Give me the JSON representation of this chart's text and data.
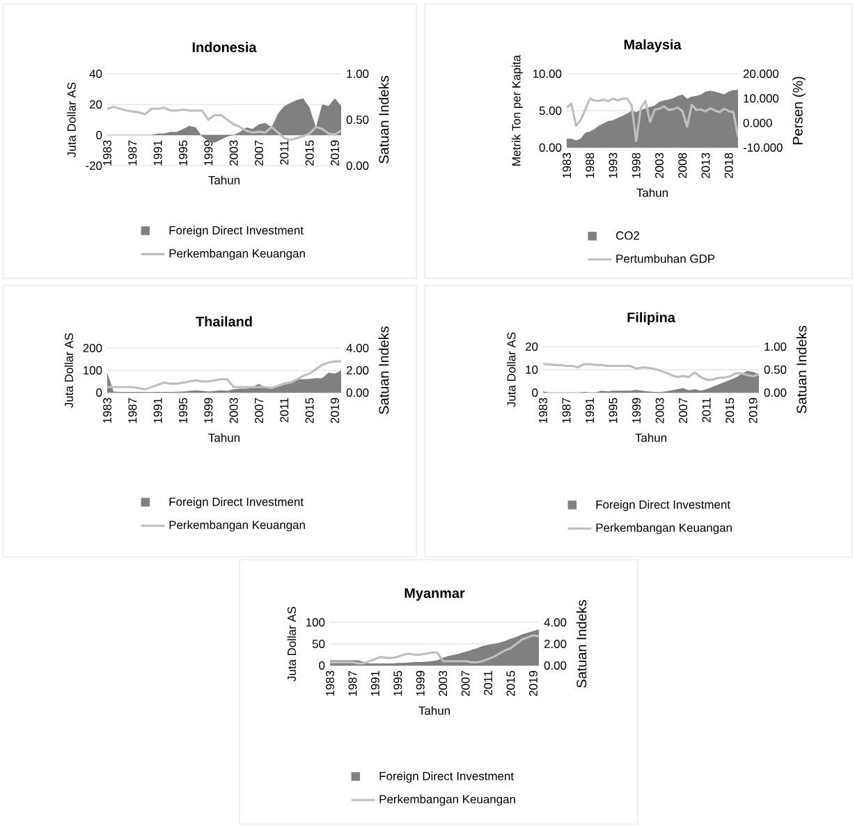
{
  "chart_data": [
    {
      "type": "area",
      "title": "Indonesia",
      "xlabel": "Tahun",
      "ylabel": "Juta Dollar AS",
      "y2label": "Satuan Indeks",
      "x": [
        1983,
        1984,
        1985,
        1986,
        1987,
        1988,
        1989,
        1990,
        1991,
        1992,
        1993,
        1994,
        1995,
        1996,
        1997,
        1998,
        1999,
        2000,
        2001,
        2002,
        2003,
        2004,
        2005,
        2006,
        2007,
        2008,
        2009,
        2010,
        2011,
        2012,
        2013,
        2014,
        2015,
        2016,
        2017,
        2018,
        2019,
        2020
      ],
      "xlim": [
        1983,
        2020
      ],
      "xticks": [
        1983,
        1987,
        1991,
        1995,
        1999,
        2003,
        2007,
        2011,
        2015,
        2019
      ],
      "ylim": [
        -20,
        40
      ],
      "yticks": [
        -20,
        0,
        20,
        40
      ],
      "y2lim": [
        0,
        1
      ],
      "y2ticks": [
        {
          "value": 0,
          "label": "0.00"
        },
        {
          "value": 0.5,
          "label": "0.50"
        },
        {
          "value": 1,
          "label": "1.00"
        }
      ],
      "grid": "y",
      "legend": "bottom",
      "series": [
        {
          "name": "Foreign Direct Investment",
          "color": "#808080",
          "values": [
            0,
            0,
            0,
            0,
            0,
            0,
            0,
            0,
            1,
            1,
            2,
            2,
            4,
            6,
            5,
            -1,
            -4,
            -5,
            -3,
            -1,
            0,
            2,
            5,
            4,
            7,
            8,
            5,
            14,
            19,
            21,
            23,
            24,
            18,
            5,
            20,
            19,
            24,
            19
          ]
        },
        {
          "name": "Perkembangan Keuangan",
          "type": "line",
          "axis": "y2",
          "color": "#bfbfbf",
          "values": [
            0.62,
            0.64,
            0.62,
            0.6,
            0.59,
            0.58,
            0.56,
            0.62,
            0.62,
            0.63,
            0.6,
            0.6,
            0.61,
            0.6,
            0.6,
            0.6,
            0.5,
            0.55,
            0.55,
            0.5,
            0.45,
            0.42,
            0.38,
            0.36,
            0.37,
            0.36,
            0.42,
            0.36,
            0.3,
            0.28,
            0.3,
            0.32,
            0.35,
            0.42,
            0.4,
            0.35,
            0.34,
            0.38
          ]
        }
      ]
    },
    {
      "type": "area",
      "title": "Malaysia",
      "xlabel": "Tahun",
      "ylabel": "Metrik Ton per Kapita",
      "y2label": "Persen (%)",
      "x": [
        1983,
        1984,
        1985,
        1986,
        1987,
        1988,
        1989,
        1990,
        1991,
        1992,
        1993,
        1994,
        1995,
        1996,
        1997,
        1998,
        1999,
        2000,
        2001,
        2002,
        2003,
        2004,
        2005,
        2006,
        2007,
        2008,
        2009,
        2010,
        2011,
        2012,
        2013,
        2014,
        2015,
        2016,
        2017,
        2018,
        2019,
        2020
      ],
      "xlim": [
        1983,
        2020
      ],
      "xticks": [
        1983,
        1988,
        1993,
        1998,
        2003,
        2008,
        2013,
        2018
      ],
      "ylim": [
        0,
        10
      ],
      "yticks": [
        {
          "value": 0,
          "label": "0.00"
        },
        {
          "value": 5,
          "label": "5.00"
        },
        {
          "value": 10,
          "label": "10.00"
        }
      ],
      "y2lim": [
        -10,
        20
      ],
      "y2ticks": [
        {
          "value": -10,
          "label": "-10.000"
        },
        {
          "value": 0,
          "label": "0.000"
        },
        {
          "value": 10,
          "label": "10.000"
        },
        {
          "value": 20,
          "label": "20.000"
        }
      ],
      "grid": "y",
      "legend": "bottom",
      "series": [
        {
          "name": "CO2",
          "color": "#808080",
          "values": [
            1.2,
            1.2,
            1.0,
            1.2,
            2.0,
            2.2,
            2.5,
            3.0,
            3.3,
            3.6,
            3.7,
            4.0,
            4.3,
            4.6,
            5.0,
            4.8,
            5.1,
            5.3,
            5.5,
            5.7,
            6.2,
            6.4,
            6.5,
            6.7,
            7.0,
            7.2,
            6.6,
            6.9,
            7.0,
            7.2,
            7.6,
            7.7,
            7.6,
            7.4,
            7.2,
            7.6,
            7.8,
            7.8
          ]
        },
        {
          "name": "Pertumbuhan GDP",
          "type": "line",
          "axis": "y2",
          "color": "#bfbfbf",
          "values": [
            6.3,
            7.8,
            -1.1,
            1.2,
            5.4,
            9.9,
            9.1,
            9.0,
            9.5,
            8.9,
            9.9,
            9.2,
            9.8,
            10.0,
            7.3,
            -7.4,
            6.1,
            8.9,
            0.5,
            5.4,
            5.8,
            6.8,
            5.3,
            5.6,
            6.3,
            4.8,
            -1.5,
            7.4,
            5.3,
            5.5,
            4.7,
            6.0,
            5.1,
            4.4,
            5.8,
            4.8,
            4.4,
            -5.6
          ]
        }
      ]
    },
    {
      "type": "area",
      "title": "Thailand",
      "xlabel": "Tahun",
      "ylabel": "Juta Dollar AS",
      "y2label": "Satuan Indeks",
      "x": [
        1983,
        1984,
        1985,
        1986,
        1987,
        1988,
        1989,
        1990,
        1991,
        1992,
        1993,
        1994,
        1995,
        1996,
        1997,
        1998,
        1999,
        2000,
        2001,
        2002,
        2003,
        2004,
        2005,
        2006,
        2007,
        2008,
        2009,
        2010,
        2011,
        2012,
        2013,
        2014,
        2015,
        2016,
        2017,
        2018,
        2019,
        2020
      ],
      "xlim": [
        1983,
        2020
      ],
      "xticks": [
        1983,
        1987,
        1991,
        1995,
        1999,
        2003,
        2007,
        2011,
        2015,
        2019
      ],
      "ylim": [
        0,
        200
      ],
      "yticks": [
        0,
        100,
        200
      ],
      "y2lim": [
        0,
        4
      ],
      "y2ticks": [
        {
          "value": 0,
          "label": "0.00"
        },
        {
          "value": 2,
          "label": "2.00"
        },
        {
          "value": 4,
          "label": "4.00"
        }
      ],
      "grid": "y",
      "legend": "bottom",
      "series": [
        {
          "name": "Foreign Direct Investment",
          "color": "#808080",
          "values": [
            90,
            5,
            3,
            3,
            3,
            3,
            2,
            2,
            3,
            3,
            3,
            4,
            5,
            8,
            10,
            8,
            5,
            8,
            10,
            8,
            15,
            18,
            18,
            25,
            40,
            20,
            20,
            35,
            45,
            50,
            60,
            60,
            62,
            65,
            65,
            90,
            85,
            100
          ]
        },
        {
          "name": "Perkembangan Keuangan",
          "type": "line",
          "axis": "y2",
          "color": "#bfbfbf",
          "values": [
            0.5,
            0.5,
            0.5,
            0.5,
            0.5,
            0.4,
            0.3,
            0.5,
            0.7,
            0.9,
            0.8,
            0.8,
            0.9,
            1.0,
            1.1,
            1.0,
            1.0,
            1.1,
            1.2,
            1.2,
            0.5,
            0.5,
            0.5,
            0.5,
            0.5,
            0.5,
            0.4,
            0.6,
            0.8,
            0.9,
            1.2,
            1.5,
            1.7,
            2.1,
            2.5,
            2.7,
            2.8,
            2.8
          ]
        }
      ]
    },
    {
      "type": "area",
      "title": "Filipina",
      "xlabel": "Tahun",
      "ylabel": "Juta Dollar AS",
      "y2label": "Satuan Indeks",
      "x": [
        1983,
        1984,
        1985,
        1986,
        1987,
        1988,
        1989,
        1990,
        1991,
        1992,
        1993,
        1994,
        1995,
        1996,
        1997,
        1998,
        1999,
        2000,
        2001,
        2002,
        2003,
        2004,
        2005,
        2006,
        2007,
        2008,
        2009,
        2010,
        2011,
        2012,
        2013,
        2014,
        2015,
        2016,
        2017,
        2018,
        2019,
        2020
      ],
      "xlim": [
        1983,
        2020
      ],
      "xticks": [
        1983,
        1987,
        1991,
        1995,
        1999,
        2003,
        2007,
        2011,
        2015,
        2019
      ],
      "ylim": [
        0,
        20
      ],
      "yticks": [
        0,
        10,
        20
      ],
      "y2lim": [
        0,
        1
      ],
      "y2ticks": [
        {
          "value": 0,
          "label": "0.00"
        },
        {
          "value": 0.5,
          "label": "0.50"
        },
        {
          "value": 1,
          "label": "1.00"
        }
      ],
      "grid": "y",
      "legend": "bottom",
      "series": [
        {
          "name": "Foreign Direct Investment",
          "color": "#808080",
          "values": [
            0.5,
            0,
            0,
            0,
            0,
            0,
            0,
            0.3,
            0,
            0,
            0.8,
            0.5,
            0.8,
            0.8,
            0.8,
            0.8,
            1.2,
            0.8,
            0.5,
            0.3,
            0.2,
            0.5,
            1.0,
            1.5,
            2.0,
            1.0,
            1.5,
            0.8,
            1.5,
            2.5,
            3.5,
            4.5,
            5.5,
            6.5,
            8.0,
            9.5,
            9.0,
            8.0
          ]
        },
        {
          "name": "Perkembangan Keuangan",
          "type": "line",
          "axis": "y2",
          "color": "#bfbfbf",
          "values": [
            0.62,
            0.62,
            0.6,
            0.6,
            0.58,
            0.58,
            0.55,
            0.62,
            0.62,
            0.6,
            0.6,
            0.58,
            0.58,
            0.58,
            0.58,
            0.58,
            0.52,
            0.55,
            0.54,
            0.52,
            0.48,
            0.44,
            0.38,
            0.34,
            0.36,
            0.34,
            0.44,
            0.34,
            0.28,
            0.28,
            0.32,
            0.33,
            0.35,
            0.42,
            0.42,
            0.38,
            0.36,
            0.4
          ]
        }
      ]
    },
    {
      "type": "area",
      "title": "Myanmar",
      "xlabel": "Tahun",
      "ylabel": "Juta Dollar AS",
      "y2label": "Satuan Indeks",
      "x": [
        1983,
        1984,
        1985,
        1986,
        1987,
        1988,
        1989,
        1990,
        1991,
        1992,
        1993,
        1994,
        1995,
        1996,
        1997,
        1998,
        1999,
        2000,
        2001,
        2002,
        2003,
        2004,
        2005,
        2006,
        2007,
        2008,
        2009,
        2010,
        2011,
        2012,
        2013,
        2014,
        2015,
        2016,
        2017,
        2018,
        2019,
        2020
      ],
      "xlim": [
        1983,
        2020
      ],
      "xticks": [
        1983,
        1987,
        1991,
        1995,
        1999,
        2003,
        2007,
        2011,
        2015,
        2019
      ],
      "ylim": [
        0,
        100
      ],
      "yticks": [
        0,
        50,
        100
      ],
      "y2lim": [
        0,
        4
      ],
      "y2ticks": [
        {
          "value": 0,
          "label": "0.00"
        },
        {
          "value": 2,
          "label": "2.00"
        },
        {
          "value": 4,
          "label": "4.00"
        }
      ],
      "grid": "y",
      "legend": "bottom",
      "series": [
        {
          "name": "Foreign Direct Investment",
          "color": "#808080",
          "values": [
            12,
            12,
            12,
            12,
            12,
            12,
            8,
            5,
            5,
            5,
            5,
            5,
            6,
            6,
            7,
            8,
            8,
            9,
            10,
            12,
            18,
            22,
            25,
            28,
            32,
            36,
            40,
            45,
            48,
            50,
            53,
            57,
            62,
            66,
            72,
            76,
            80,
            84
          ]
        },
        {
          "name": "Perkembangan Keuangan",
          "type": "line",
          "axis": "y2",
          "color": "#bfbfbf",
          "values": [
            0.3,
            0.3,
            0.3,
            0.3,
            0.3,
            0.2,
            0.2,
            0.4,
            0.6,
            0.8,
            0.7,
            0.7,
            0.8,
            1.0,
            1.1,
            1.0,
            1.0,
            1.1,
            1.2,
            1.2,
            0.4,
            0.4,
            0.4,
            0.4,
            0.4,
            0.3,
            0.3,
            0.4,
            0.6,
            0.8,
            1.1,
            1.4,
            1.6,
            2.0,
            2.4,
            2.6,
            2.8,
            2.7
          ]
        }
      ]
    }
  ]
}
